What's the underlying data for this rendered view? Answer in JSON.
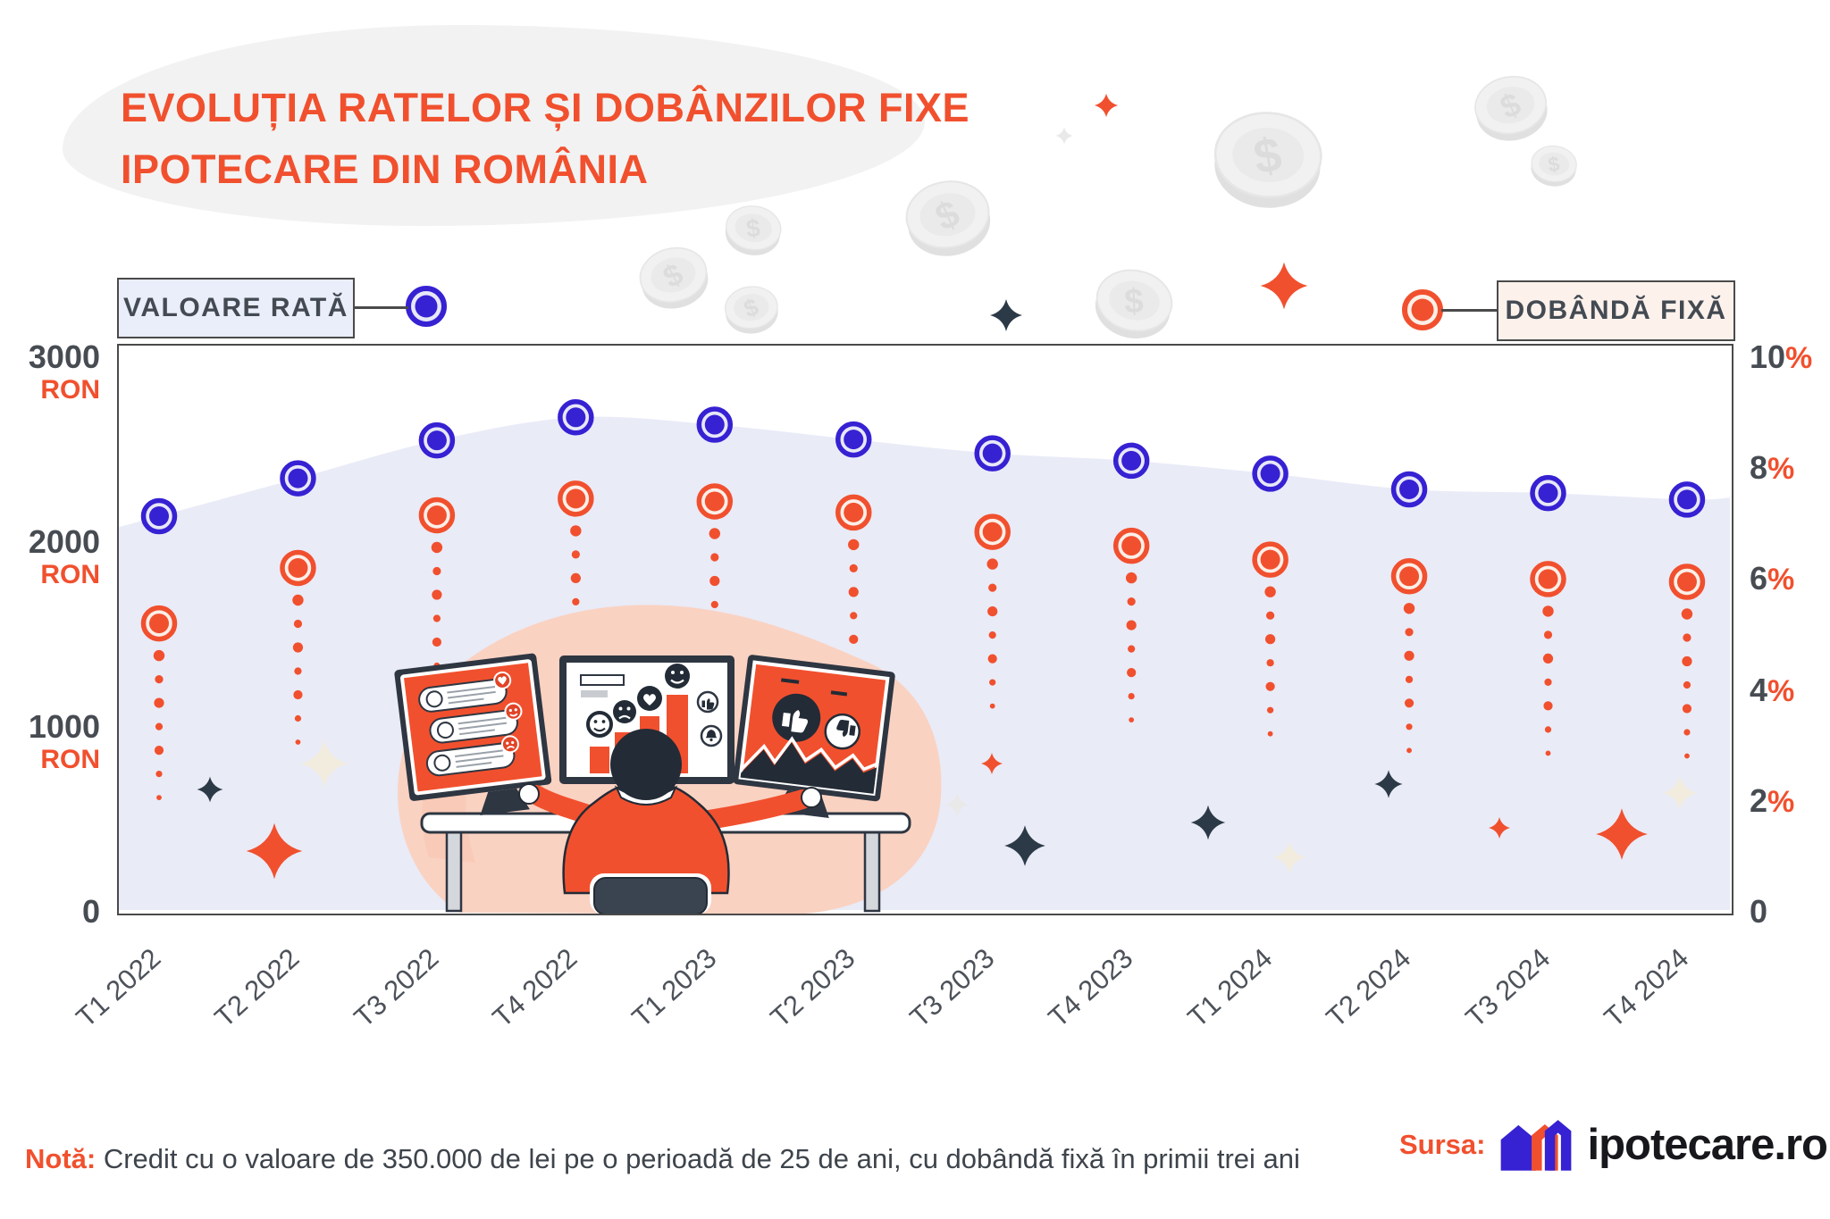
{
  "title": {
    "line1": "EVOLUȚIA RATELOR ȘI DOBÂNZILOR FIXE",
    "line2": "IPOTECARE DIN ROMÂNIA"
  },
  "legend": {
    "left_label": "VALOARE RATĂ",
    "right_label": "DOBÂNDĂ FIXĂ"
  },
  "chart_data": {
    "type": "line",
    "title": "Evoluția ratelor și dobânzilor fixe ipotecare din România",
    "categories": [
      "T1 2022",
      "T2 2022",
      "T3 2022",
      "T4 2022",
      "T1 2023",
      "T2 2023",
      "T3 2023",
      "T4 2023",
      "T1 2024",
      "T2 2024",
      "T3 2024",
      "T4 2024"
    ],
    "series": [
      {
        "name": "Valoare rată",
        "unit": "RON",
        "axis": "left",
        "color": "#3621D3",
        "marker": "target-circle",
        "area_fill": true,
        "values": [
          2140,
          2345,
          2550,
          2675,
          2635,
          2555,
          2480,
          2440,
          2370,
          2285,
          2265,
          2230
        ]
      },
      {
        "name": "Dobândă fixă",
        "unit": "%",
        "axis": "right",
        "color": "#F1502E",
        "marker": "target-circle-dotted-trail",
        "area_fill": false,
        "values": [
          5.2,
          6.2,
          7.15,
          7.45,
          7.4,
          7.2,
          6.85,
          6.6,
          6.35,
          6.05,
          6.0,
          5.95
        ]
      }
    ],
    "left_axis": {
      "unit": "RON",
      "ticks": [
        3000,
        2000,
        1000,
        0
      ],
      "range": [
        0,
        3000
      ]
    },
    "right_axis": {
      "unit": "%",
      "ticks": [
        10,
        8,
        6,
        4,
        2,
        0
      ],
      "range": [
        0,
        10
      ]
    },
    "grid": false,
    "legend_position": "top"
  },
  "note": {
    "prefix": "Notă:",
    "text": " Credit cu o valoare de 350.000 de lei pe o perioadă de 25 de ani, cu dobândă fixă în primii trei ani"
  },
  "source": {
    "label": "Sursa:",
    "brand": "ipotecare.ro"
  },
  "colors": {
    "accent_orange": "#F1502E",
    "accent_blue": "#3621D3",
    "blue_gap": "#E7E7F7",
    "orange_gap": "#FBEFE8",
    "text_dark": "#474B52",
    "band_fill": "#E9EBF7",
    "frame": "#4A4A4A",
    "sparkle_navy": "#2C3A47",
    "sparkle_cream": "#F2ECDF",
    "sparkle_gray": "#E9E9E9",
    "coin_face": "#F1F1F1",
    "coin_side": "#E0E0E0",
    "illustration_pink": "#FAD2C2"
  }
}
